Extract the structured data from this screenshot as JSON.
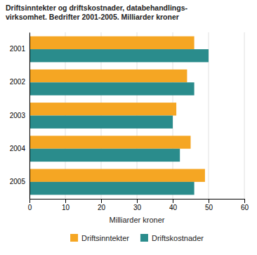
{
  "chart_data": {
    "type": "bar",
    "orientation": "horizontal",
    "title": "Driftsinntekter og driftskostnader, databehandlings-\nvirksomhet. Bedrifter 2001-2005. Milliarder kroner",
    "categories": [
      "2001",
      "2002",
      "2003",
      "2004",
      "2005"
    ],
    "series": [
      {
        "name": "Driftsinntekter",
        "color": "#F5A623",
        "values": [
          46,
          44,
          41,
          45,
          49
        ]
      },
      {
        "name": "Driftskostnader",
        "color": "#2A8C8C",
        "values": [
          50,
          46,
          40,
          42,
          46
        ]
      }
    ],
    "xlabel": "Milliarder kroner",
    "xlim": [
      0,
      60
    ],
    "xticks": [
      0,
      10,
      20,
      30,
      40,
      50,
      60
    ],
    "grid": true,
    "legend": "bottom"
  }
}
